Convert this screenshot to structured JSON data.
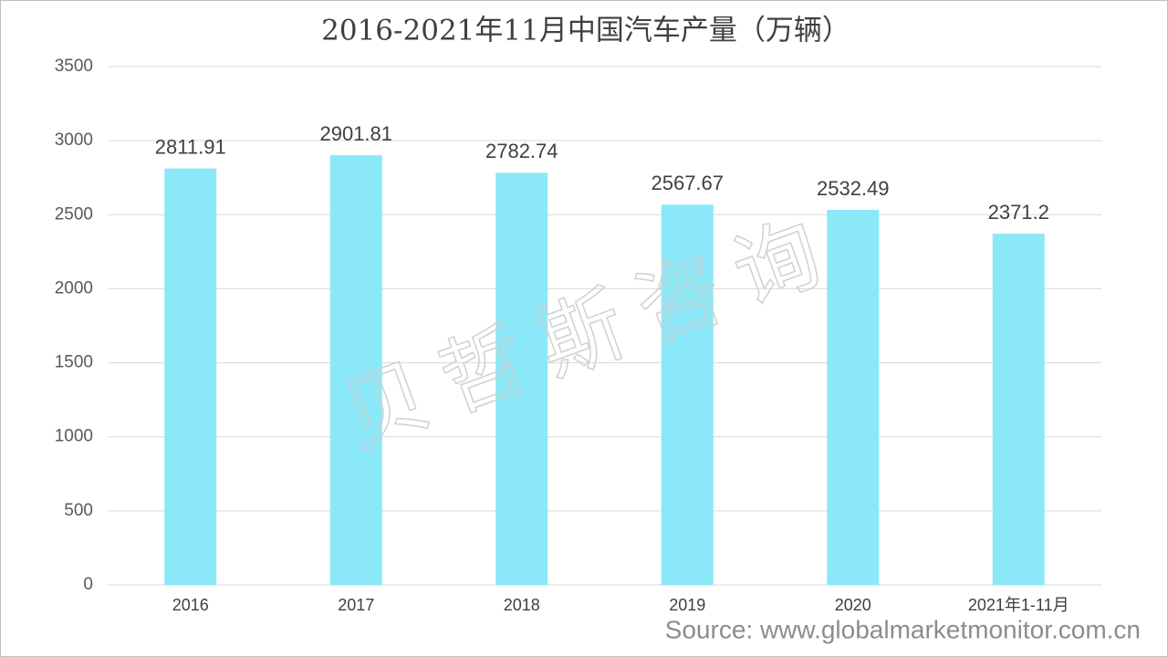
{
  "chart_data": {
    "type": "bar",
    "title": "2016-2021年11月中国汽车产量（万辆）",
    "categories": [
      "2016",
      "2017",
      "2018",
      "2019",
      "2020",
      "2021年1-11月"
    ],
    "values": [
      2811.91,
      2901.81,
      2782.74,
      2567.67,
      2532.49,
      2371.2
    ],
    "color": "#8ae8f8",
    "ylim": [
      0,
      3500
    ],
    "yticks": [
      0,
      500,
      1000,
      1500,
      2000,
      2500,
      3000,
      3500
    ],
    "grid": true,
    "watermark": "贝哲斯咨询",
    "source": "Source: www.globalmarketmonitor.com.cn"
  }
}
